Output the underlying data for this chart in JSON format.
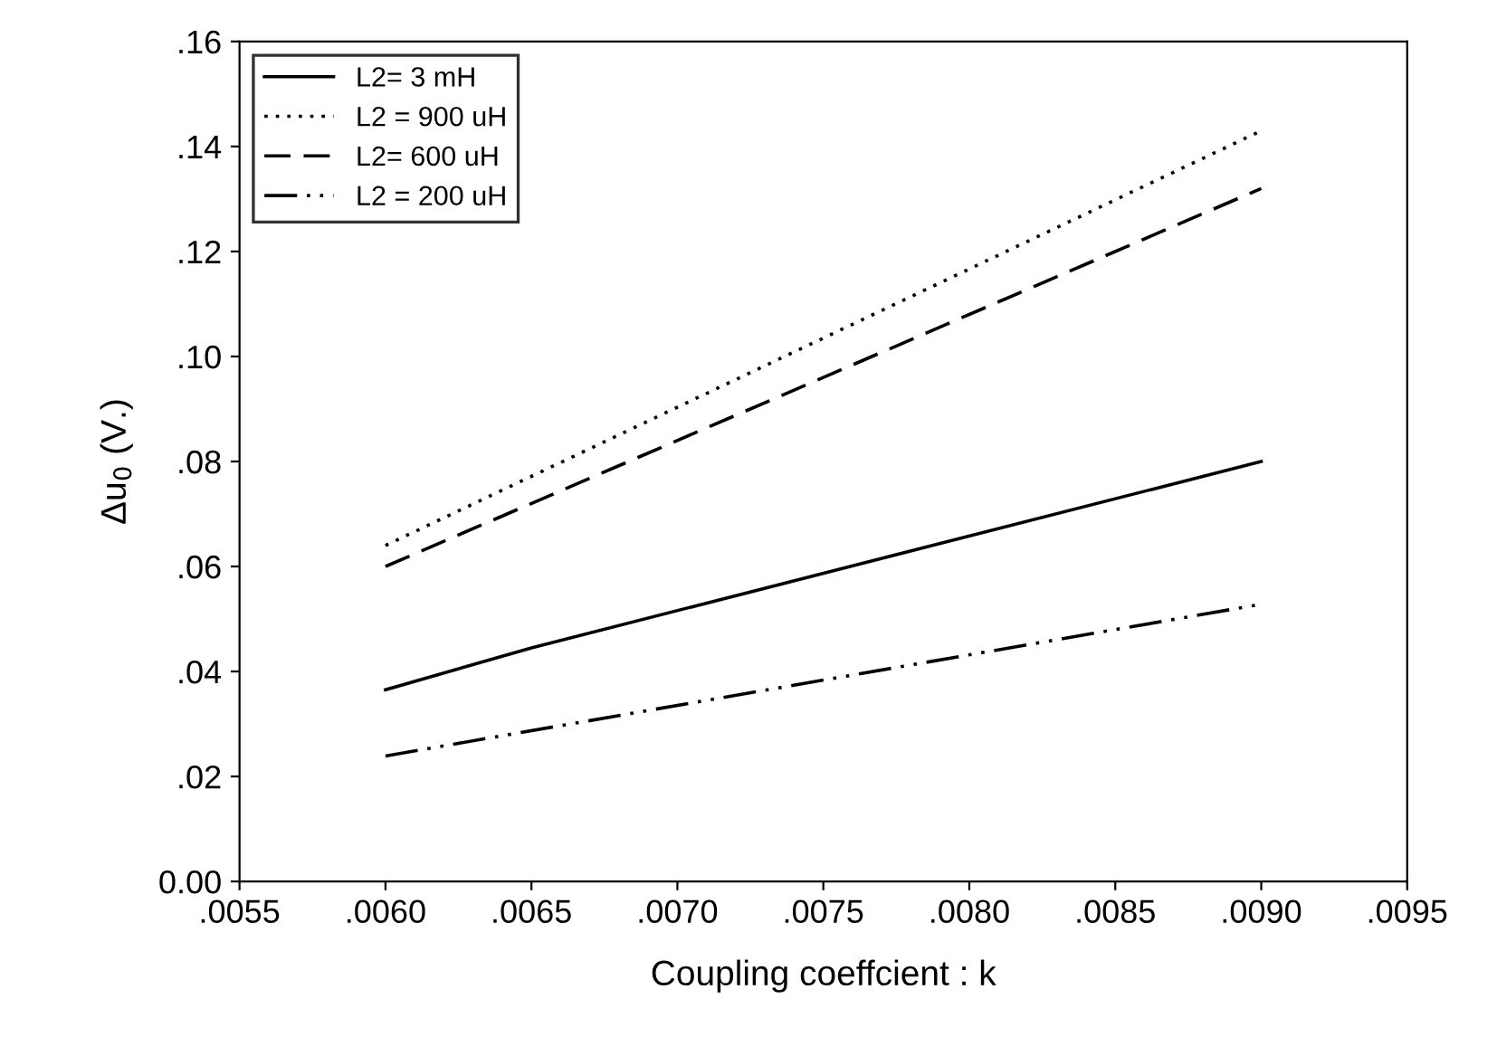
{
  "chart_data": {
    "type": "line",
    "xlabel": "Coupling coeffcient : k",
    "ylabel": "Δu$_{0}$ (V.)",
    "series": [
      {
        "name": "L2= 3 mH",
        "color": "#000000",
        "line_style": "solid",
        "x": [
          0.006,
          0.0065,
          0.009
        ],
        "values": [
          0.0365,
          0.0445,
          0.08
        ]
      },
      {
        "name": "L2 = 900 uH",
        "color": "#000000",
        "line_style": "dotted",
        "x": [
          0.006,
          0.009
        ],
        "values": [
          0.064,
          0.143
        ]
      },
      {
        "name": "L2= 600 uH",
        "color": "#000000",
        "line_style": "dashed",
        "x": [
          0.006,
          0.009
        ],
        "values": [
          0.06,
          0.132
        ]
      },
      {
        "name": "L2 = 200 uH",
        "color": "#000000",
        "line_style": "dashdotdot",
        "x": [
          0.006,
          0.009
        ],
        "values": [
          0.0239,
          0.0528
        ]
      }
    ],
    "xlim": [
      0.0055,
      0.0095
    ],
    "xticks": [
      {
        "value": 0.0055,
        "label": ".0055"
      },
      {
        "value": 0.006,
        "label": ".0060"
      },
      {
        "value": 0.0065,
        "label": ".0065"
      },
      {
        "value": 0.007,
        "label": ".0070"
      },
      {
        "value": 0.0075,
        "label": ".0075"
      },
      {
        "value": 0.008,
        "label": ".0080"
      },
      {
        "value": 0.0085,
        "label": ".0085"
      },
      {
        "value": 0.009,
        "label": ".0090"
      },
      {
        "value": 0.0095,
        "label": ".0095"
      }
    ],
    "ylim": [
      0,
      0.16
    ],
    "yticks": [
      {
        "value": 0,
        "label": "0.00"
      },
      {
        "value": 0.02,
        "label": ".02"
      },
      {
        "value": 0.04,
        "label": ".04"
      },
      {
        "value": 0.06,
        "label": ".06"
      },
      {
        "value": 0.08,
        "label": ".08"
      },
      {
        "value": 0.1,
        "label": ".10"
      },
      {
        "value": 0.12,
        "label": ".12"
      },
      {
        "value": 0.14,
        "label": ".14"
      },
      {
        "value": 0.16,
        "label": ".16"
      }
    ],
    "legend": "top left",
    "grid": false
  }
}
